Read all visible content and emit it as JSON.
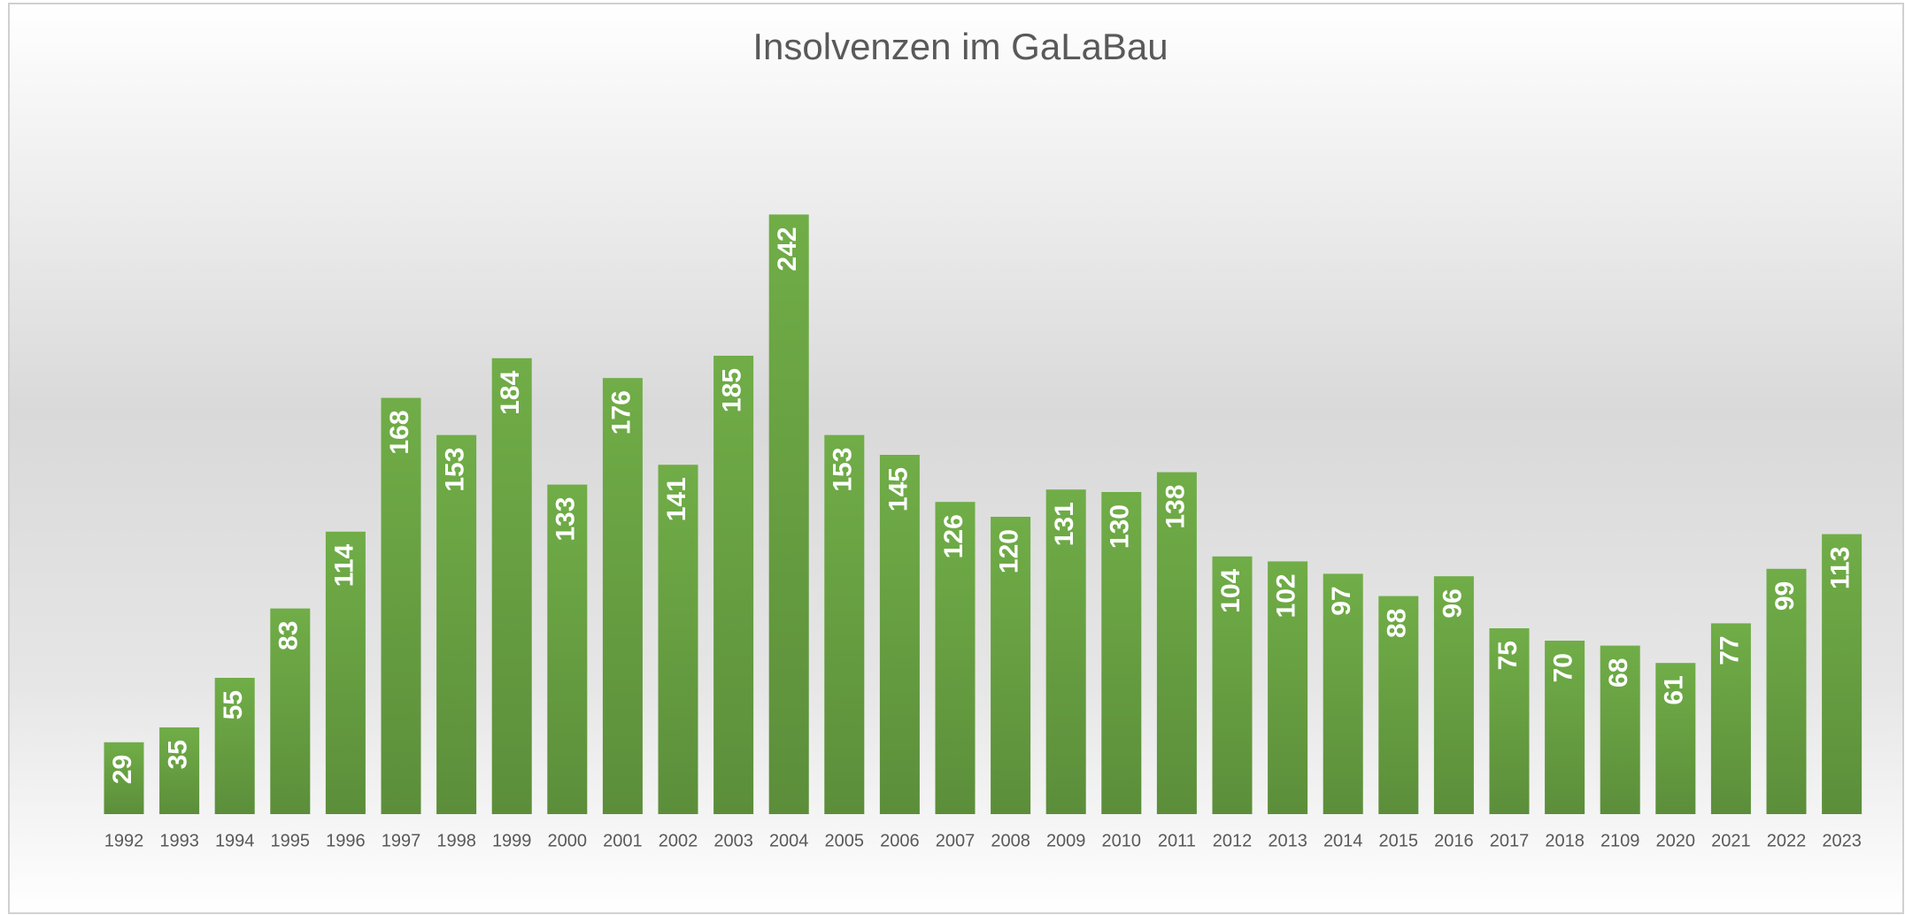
{
  "chart_data": {
    "type": "bar",
    "title": "Insolvenzen im GaLaBau",
    "categories": [
      "1992",
      "1993",
      "1994",
      "1995",
      "1996",
      "1997",
      "1998",
      "1999",
      "2000",
      "2001",
      "2002",
      "2003",
      "2004",
      "2005",
      "2006",
      "2007",
      "2008",
      "2009",
      "2010",
      "2011",
      "2012",
      "2013",
      "2014",
      "2015",
      "2016",
      "2017",
      "2018",
      "2109",
      "2020",
      "2021",
      "2022",
      "2023"
    ],
    "values": [
      29,
      35,
      55,
      83,
      114,
      168,
      153,
      184,
      133,
      176,
      141,
      185,
      242,
      153,
      145,
      126,
      120,
      131,
      130,
      138,
      104,
      102,
      97,
      88,
      96,
      75,
      70,
      68,
      61,
      77,
      99,
      113
    ],
    "color": "#70ad47",
    "ylim": [
      0,
      300
    ]
  }
}
